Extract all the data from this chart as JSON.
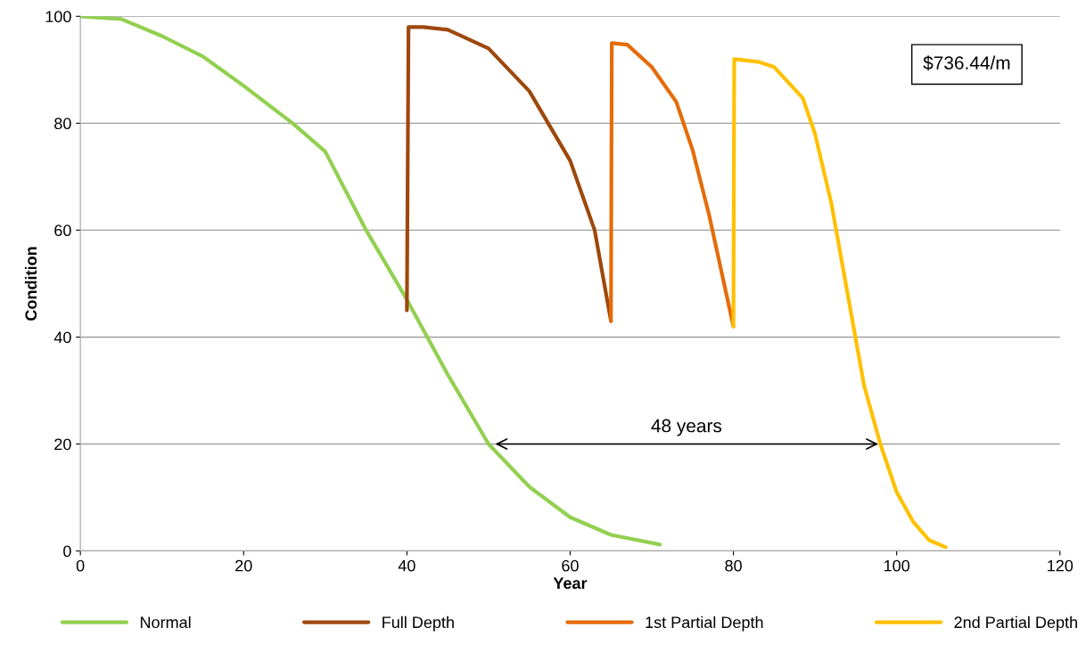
{
  "chart_data": {
    "type": "line",
    "xlabel": "Year",
    "ylabel": "Condition",
    "xlim": [
      0,
      120
    ],
    "xticks": [
      0,
      20,
      40,
      60,
      80,
      100,
      120
    ],
    "ylim": [
      0,
      100
    ],
    "yticks": [
      0,
      20,
      40,
      60,
      80,
      100
    ],
    "grid": "y",
    "legend": "bottom",
    "marker": "none",
    "line_style": "solid",
    "series": [
      {
        "name": "Normal",
        "color": "#92d050",
        "x": [
          0,
          5,
          10,
          15,
          20,
          26,
          30,
          35,
          40,
          45,
          50,
          55,
          60,
          65,
          71
        ],
        "values": [
          100,
          99.5,
          96.3,
          92.5,
          87,
          80,
          74.7,
          60,
          47,
          33,
          20,
          12,
          6.3,
          3,
          1.2
        ]
      },
      {
        "name": "Full Depth",
        "color": "#9e480e",
        "x": [
          40,
          40.2,
          42,
          45,
          50,
          55,
          60,
          63,
          65
        ],
        "values": [
          45,
          98,
          98,
          97.5,
          94,
          86,
          73,
          60,
          43
        ]
      },
      {
        "name": "1st Partial Depth",
        "color": "#e46c0a",
        "x": [
          65,
          65.1,
          67,
          70,
          73,
          75,
          77,
          80
        ],
        "values": [
          43,
          95,
          94.7,
          90.5,
          84,
          75,
          63,
          42
        ]
      },
      {
        "name": "2nd Partial Depth",
        "color": "#ffc000",
        "x": [
          80,
          80.1,
          83,
          85,
          88.5,
          90,
          92,
          94,
          96,
          98,
          100,
          102,
          104,
          106
        ],
        "values": [
          42,
          92,
          91.5,
          90.5,
          84.7,
          78,
          65,
          48,
          31,
          20,
          11,
          5.5,
          2,
          0.7
        ]
      }
    ],
    "annotations": [
      "$736.44/m",
      "48 years"
    ]
  }
}
